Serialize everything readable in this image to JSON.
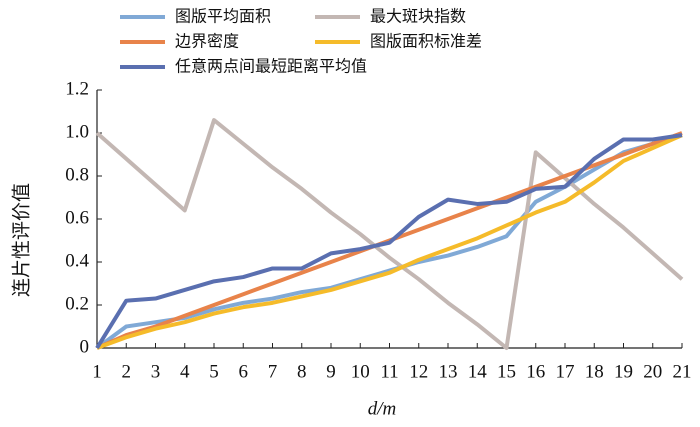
{
  "chart_data": {
    "type": "line",
    "x_label": "d/m",
    "y_label": "连片性评价值",
    "x": [
      1,
      2,
      3,
      4,
      5,
      6,
      7,
      8,
      9,
      10,
      11,
      12,
      13,
      14,
      15,
      16,
      17,
      18,
      19,
      20,
      21
    ],
    "xlim": [
      1,
      21
    ],
    "xticks": [
      1,
      2,
      3,
      4,
      5,
      6,
      7,
      8,
      9,
      10,
      11,
      12,
      13,
      14,
      15,
      16,
      17,
      18,
      19,
      20,
      21
    ],
    "ylim": [
      0,
      1.2
    ],
    "yticks": [
      0,
      0.2,
      0.4,
      0.6,
      0.8,
      {
        "value": 1,
        "label": "1.0"
      },
      1.2
    ],
    "series": [
      {
        "name": "图版平均面积",
        "color": "#80a9d6",
        "values": [
          0,
          0.1,
          0.12,
          0.14,
          0.18,
          0.21,
          0.23,
          0.26,
          0.28,
          0.32,
          0.36,
          0.4,
          0.43,
          0.47,
          0.52,
          0.68,
          0.75,
          0.83,
          0.91,
          0.95,
          0.99
        ]
      },
      {
        "name": "最大斑块指数",
        "color": "#c3b7b3",
        "values": [
          1.0,
          0.88,
          0.76,
          0.64,
          1.06,
          0.95,
          0.84,
          0.74,
          0.63,
          0.53,
          0.42,
          0.32,
          0.21,
          0.11,
          0,
          0.91,
          0.79,
          0.67,
          0.56,
          0.44,
          0.32
        ]
      },
      {
        "name": "边界密度",
        "color": "#e8834a",
        "values": [
          0,
          0.06,
          0.1,
          0.15,
          0.2,
          0.25,
          0.3,
          0.35,
          0.4,
          0.45,
          0.5,
          0.55,
          0.6,
          0.65,
          0.7,
          0.75,
          0.8,
          0.85,
          0.9,
          0.95,
          1.0
        ]
      },
      {
        "name": "图版面积标准差",
        "color": "#f5bb2a",
        "values": [
          0,
          0.05,
          0.09,
          0.12,
          0.16,
          0.19,
          0.21,
          0.24,
          0.27,
          0.31,
          0.35,
          0.41,
          0.46,
          0.51,
          0.57,
          0.63,
          0.68,
          0.77,
          0.87,
          0.93,
          0.99
        ]
      },
      {
        "name": "任意两点间最短距离平均值",
        "color": "#5a6fb0",
        "values": [
          0,
          0.22,
          0.23,
          0.27,
          0.31,
          0.33,
          0.37,
          0.37,
          0.44,
          0.46,
          0.49,
          0.61,
          0.69,
          0.67,
          0.68,
          0.74,
          0.75,
          0.88,
          0.97,
          0.97,
          0.99
        ]
      }
    ]
  }
}
